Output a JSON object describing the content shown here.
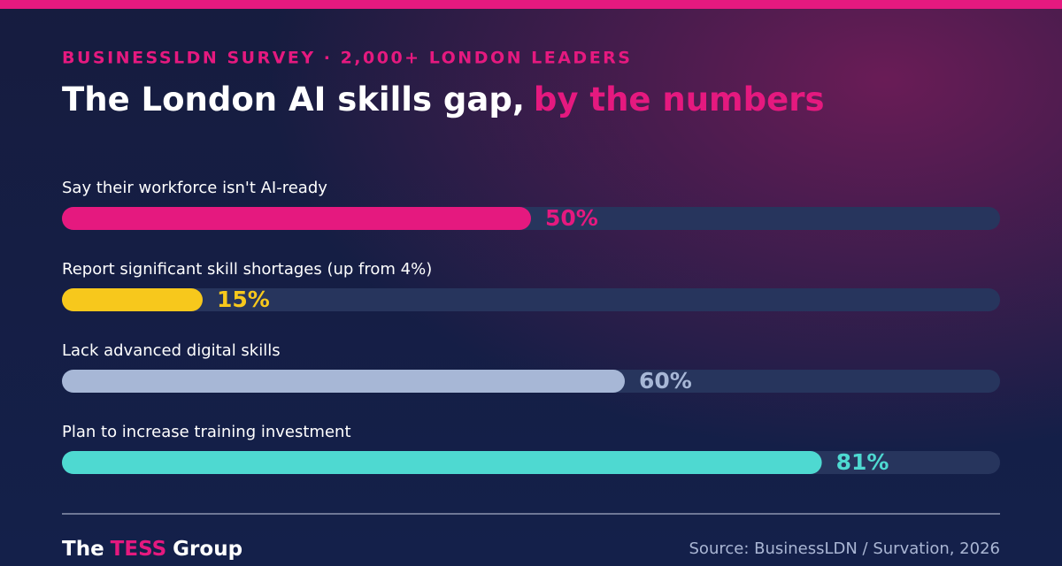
{
  "chart_data": {
    "type": "bar",
    "kicker": "BUSINESSLDN SURVEY  ·  2,000+ LONDON LEADERS",
    "title": [
      "The London AI skills gap,",
      "by the numbers"
    ],
    "categories": [
      "Say their workforce isn't AI-ready",
      "Report significant skill shortages (up from 4%)",
      "Lack advanced digital skills",
      "Plan to increase training investment"
    ],
    "values": [
      50,
      15,
      60,
      81
    ],
    "value_labels": [
      "50%",
      "15%",
      "60%",
      "81%"
    ],
    "colors": [
      "#e5197f",
      "#f7c81c",
      "#a7b7d6",
      "#4ed9d1"
    ],
    "xlim": [
      0,
      100
    ]
  },
  "footer": {
    "brand": [
      "The",
      "TESS",
      "Group"
    ],
    "source": "Source: BusinessLDN / Survation, 2026"
  }
}
